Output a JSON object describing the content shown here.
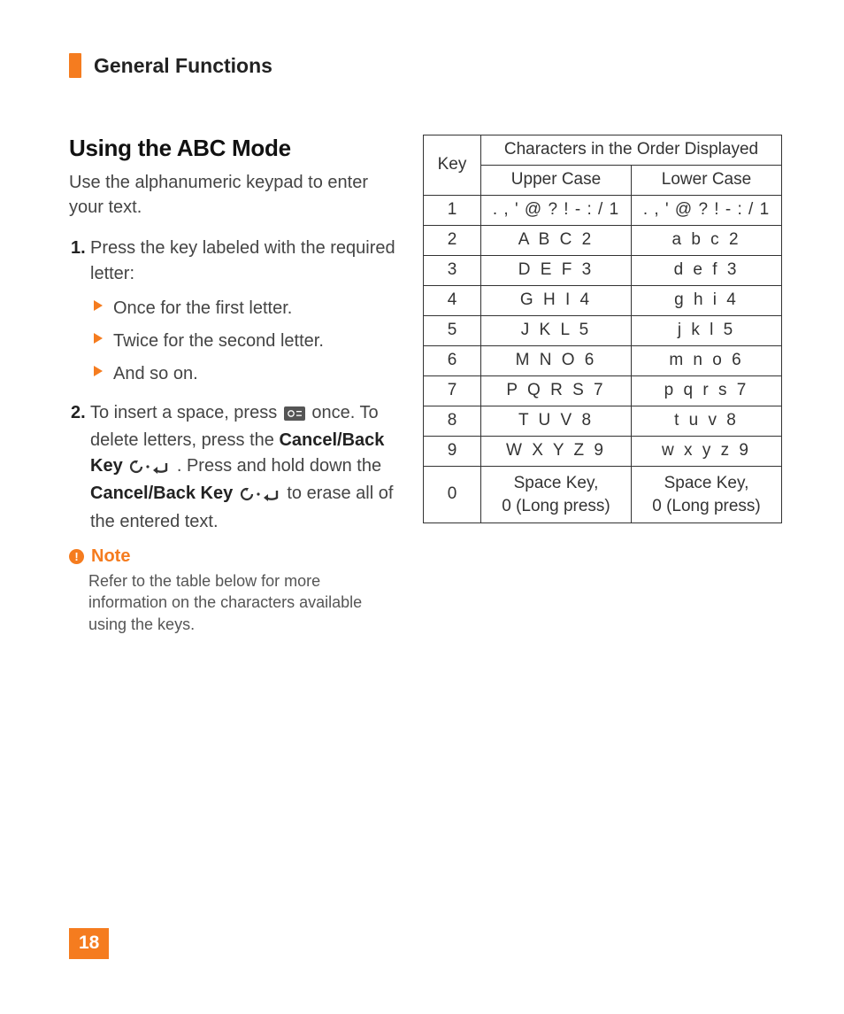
{
  "colors": {
    "accent": "#f57c1f",
    "text": "#333",
    "border": "#333"
  },
  "header": {
    "section_title": "General Functions"
  },
  "main": {
    "heading": "Using the ABC Mode",
    "intro": "Use the alphanumeric keypad to enter your text.",
    "steps": [
      {
        "num": "1.",
        "text": "Press the key labeled with the required letter:",
        "bullets": [
          "Once for the first letter.",
          "Twice for the second letter.",
          "And so on."
        ]
      },
      {
        "num": "2.",
        "t1": "To insert a space, press ",
        "t2": " once. To delete letters, press the ",
        "bold1": "Cancel/Back Key",
        "t3": " . Press and hold down the ",
        "bold2": "Cancel/Back Key",
        "t4": " to erase all of the entered text."
      }
    ],
    "note": {
      "label": "Note",
      "body": "Refer to the table below for more information on the characters available using the keys."
    }
  },
  "table": {
    "key_header": "Key",
    "span_header": "Characters in the Order Displayed",
    "col_upper": "Upper Case",
    "col_lower": "Lower Case",
    "rows": [
      {
        "k": "1",
        "u": ". , ' @ ? ! - : / 1",
        "l": ". , ' @ ? ! - : / 1",
        "ls": "1px"
      },
      {
        "k": "2",
        "u": "A B C 2",
        "l": "a b c 2"
      },
      {
        "k": "3",
        "u": "D E F 3",
        "l": "d e f 3"
      },
      {
        "k": "4",
        "u": "G H I 4",
        "l": "g h i 4"
      },
      {
        "k": "5",
        "u": "J K L 5",
        "l": "j k l 5"
      },
      {
        "k": "6",
        "u": "M N O 6",
        "l": "m n o 6"
      },
      {
        "k": "7",
        "u": "P Q R S 7",
        "l": "p q r s 7"
      },
      {
        "k": "8",
        "u": "T U V 8",
        "l": "t u v 8"
      },
      {
        "k": "9",
        "u": "W X Y Z 9",
        "l": "w x y z 9"
      },
      {
        "k": "0",
        "u": "Space Key,\n0 (Long press)",
        "l": "Space Key,\n0 (Long press)",
        "multi": true
      }
    ]
  },
  "page_number": "18",
  "icons": {
    "zero_key": "zero-key-icon",
    "cancel_back": "cancel-back-icon"
  }
}
